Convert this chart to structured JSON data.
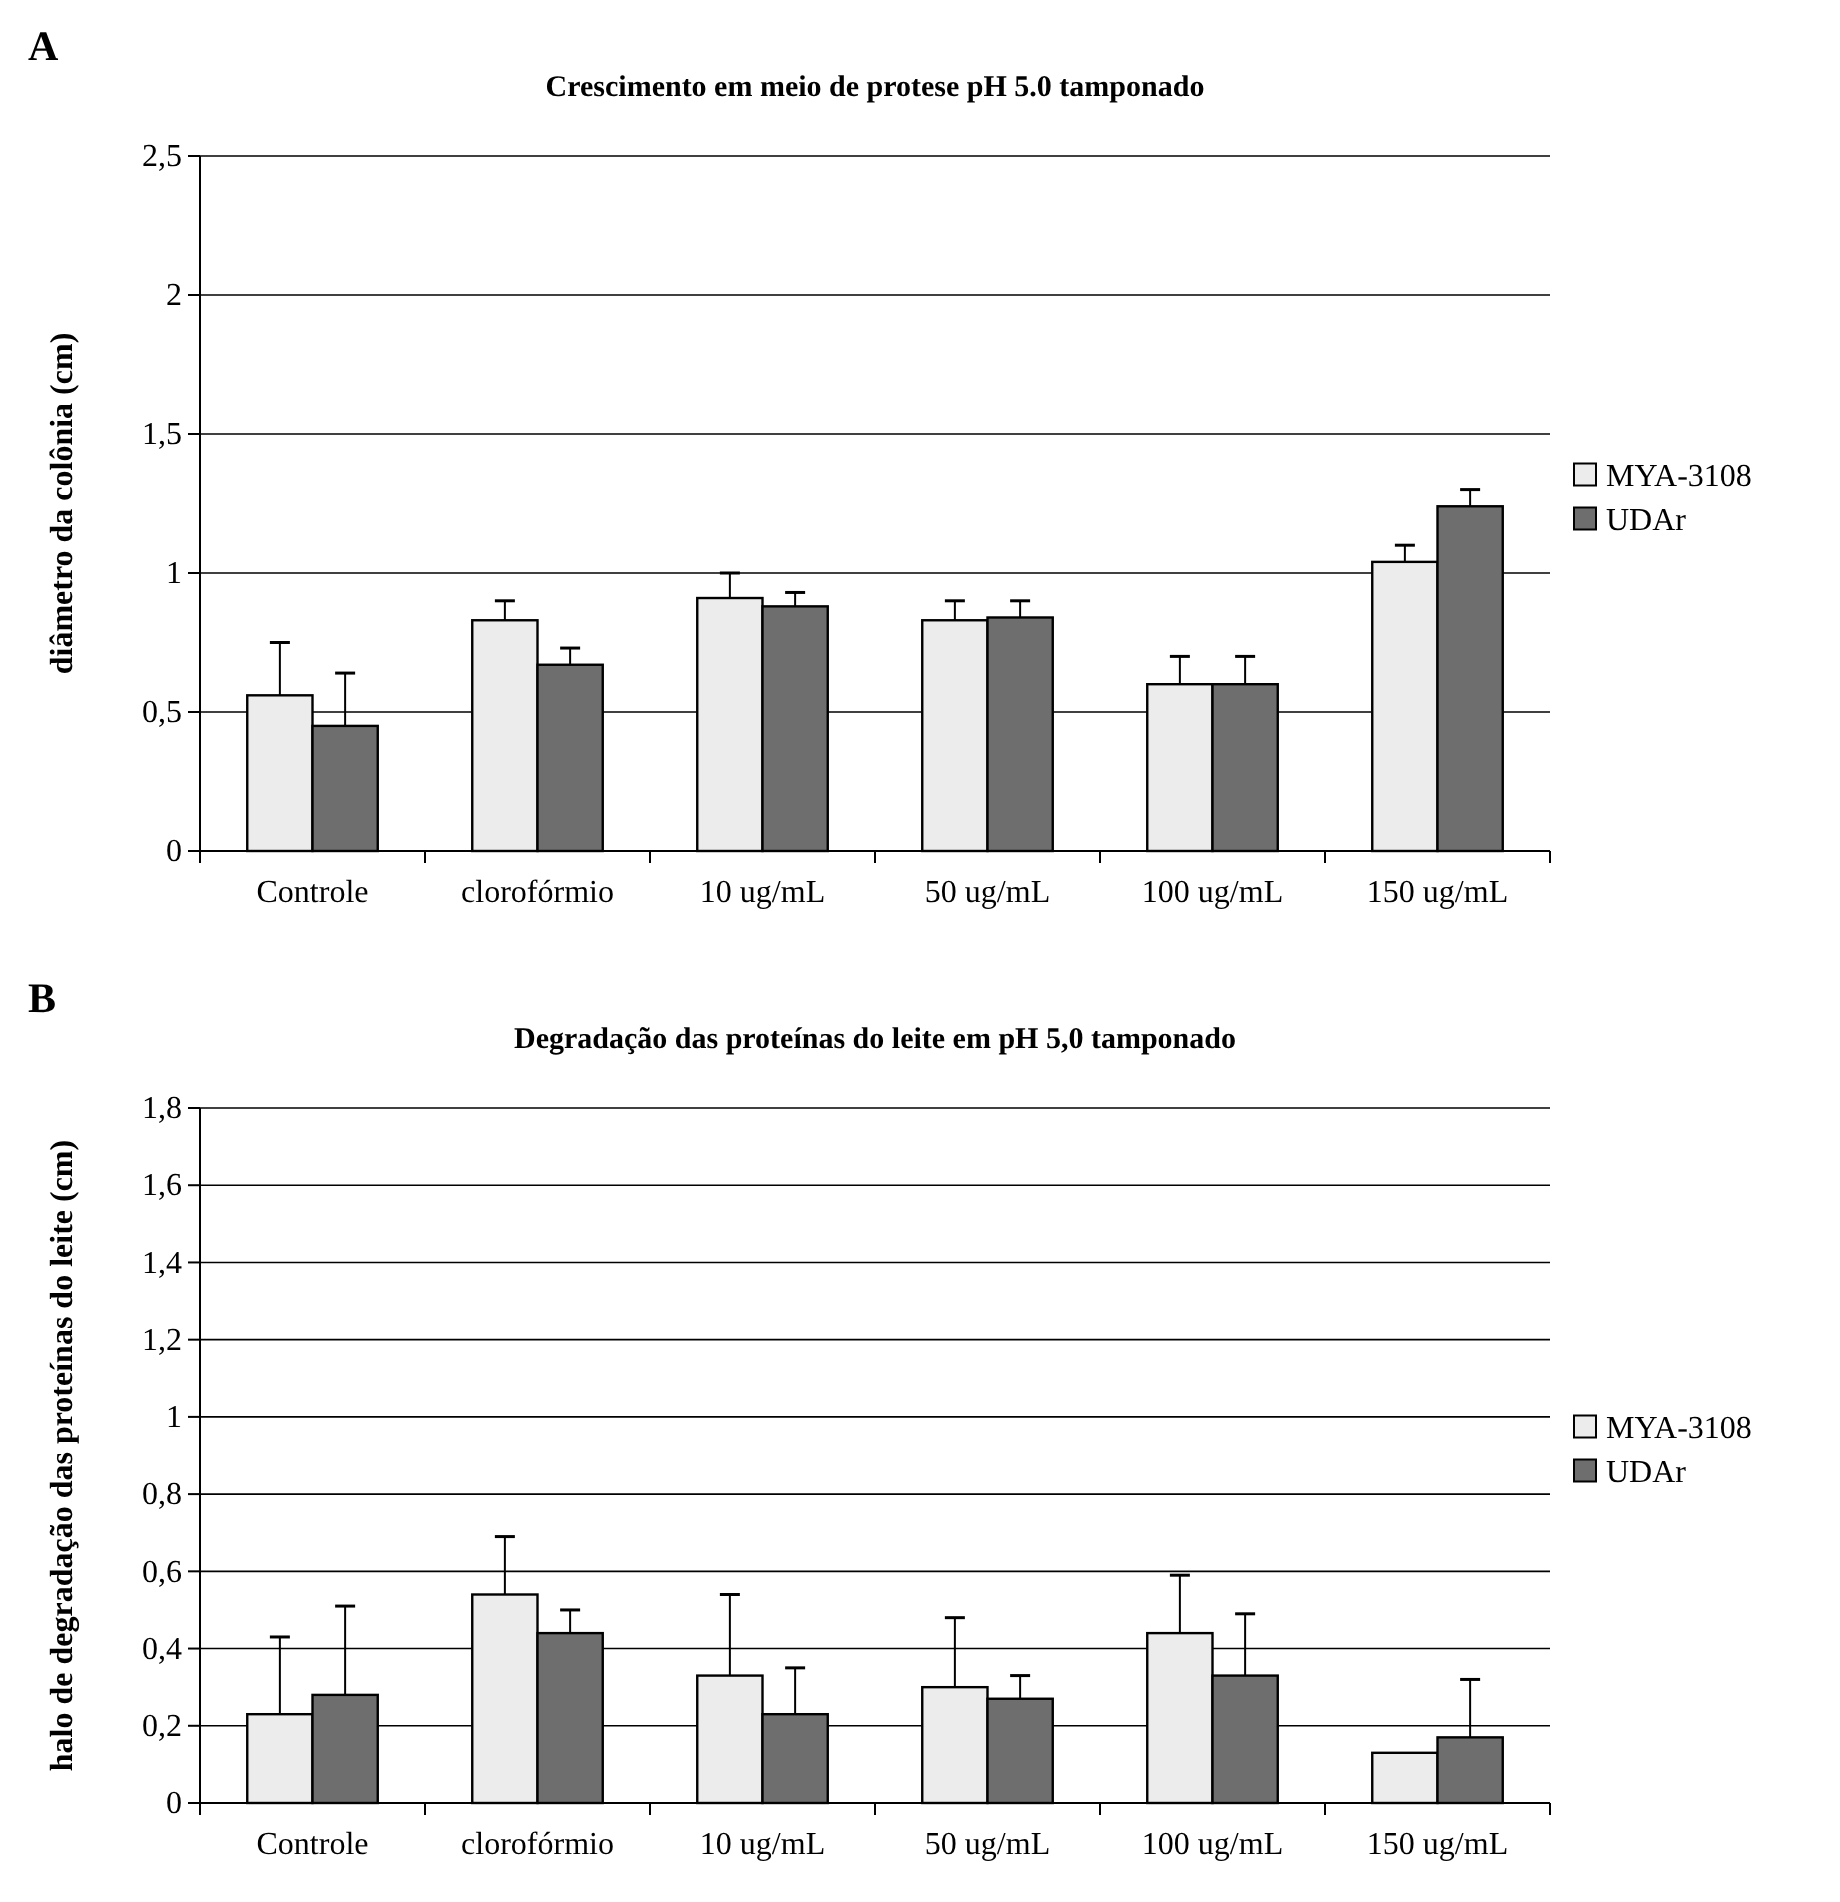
{
  "chart_data": [
    {
      "type": "bar",
      "title": "Crescimento em meio de protese pH 5.0 tamponado",
      "ylabel": "diâmetro da colônia (cm)",
      "annotations": [
        "A"
      ],
      "categories": [
        "Controle",
        "clorofórmio",
        "10 ug/mL",
        "50 ug/mL",
        "100 ug/mL",
        "150 ug/mL"
      ],
      "series": [
        {
          "name": "MYA-3108",
          "color": "#ececec",
          "values": [
            0.56,
            0.83,
            0.91,
            0.83,
            0.6,
            1.04
          ],
          "errors": [
            [
              0.56,
              0.75
            ],
            [
              0.83,
              0.9
            ],
            [
              0.91,
              1.0
            ],
            [
              0.83,
              0.9
            ],
            [
              0.6,
              0.7
            ],
            [
              1.04,
              1.1
            ]
          ]
        },
        {
          "name": "UDAr",
          "color": "#6e6e6e",
          "values": [
            0.45,
            0.67,
            0.88,
            0.84,
            0.6,
            1.24
          ],
          "errors": [
            [
              0.45,
              0.64
            ],
            [
              0.67,
              0.73
            ],
            [
              0.88,
              0.93
            ],
            [
              0.84,
              0.9
            ],
            [
              0.6,
              0.7
            ],
            [
              1.24,
              1.3
            ]
          ]
        }
      ],
      "ylim": [
        0,
        2.5
      ],
      "yticks": [
        0,
        {
          "value": 0.5,
          "label": "0,5"
        },
        1,
        {
          "value": 1.5,
          "label": "1,5"
        },
        2,
        {
          "value": 2.5,
          "label": "2,5"
        }
      ],
      "grid": "y",
      "legend": "right"
    },
    {
      "type": "bar",
      "title": "Degradação das proteínas do leite em pH 5,0 tamponado",
      "ylabel": "halo de degradação das proteínas do leite (cm)",
      "annotations": [
        "B"
      ],
      "categories": [
        "Controle",
        "clorofórmio",
        "10 ug/mL",
        "50 ug/mL",
        "100 ug/mL",
        "150 ug/mL"
      ],
      "series": [
        {
          "name": "MYA-3108",
          "color": "#ececec",
          "values": [
            0.23,
            0.54,
            0.33,
            0.3,
            0.44,
            0.13
          ],
          "errors": [
            [
              0.23,
              0.43
            ],
            [
              0.54,
              0.69
            ],
            [
              0.33,
              0.54
            ],
            [
              0.3,
              0.48
            ],
            [
              0.44,
              0.59
            ],
            null
          ]
        },
        {
          "name": "UDAr",
          "color": "#6e6e6e",
          "values": [
            0.28,
            0.44,
            0.23,
            0.27,
            0.33,
            0.17
          ],
          "errors": [
            [
              0.28,
              0.51
            ],
            [
              0.44,
              0.5
            ],
            [
              0.23,
              0.35
            ],
            [
              0.27,
              0.33
            ],
            [
              0.33,
              0.49
            ],
            [
              0.17,
              0.32
            ]
          ]
        }
      ],
      "ylim": [
        0,
        1.8
      ],
      "yticks": [
        0,
        {
          "value": 0.2,
          "label": "0,2"
        },
        {
          "value": 0.4,
          "label": "0,4"
        },
        {
          "value": 0.6,
          "label": "0,6"
        },
        {
          "value": 0.8,
          "label": "0,8"
        },
        1,
        {
          "value": 1.2,
          "label": "1,2"
        },
        {
          "value": 1.4,
          "label": "1,4"
        },
        {
          "value": 1.6,
          "label": "1,6"
        },
        {
          "value": 1.8,
          "label": "1,8"
        }
      ],
      "grid": "y",
      "legend": "right"
    }
  ]
}
